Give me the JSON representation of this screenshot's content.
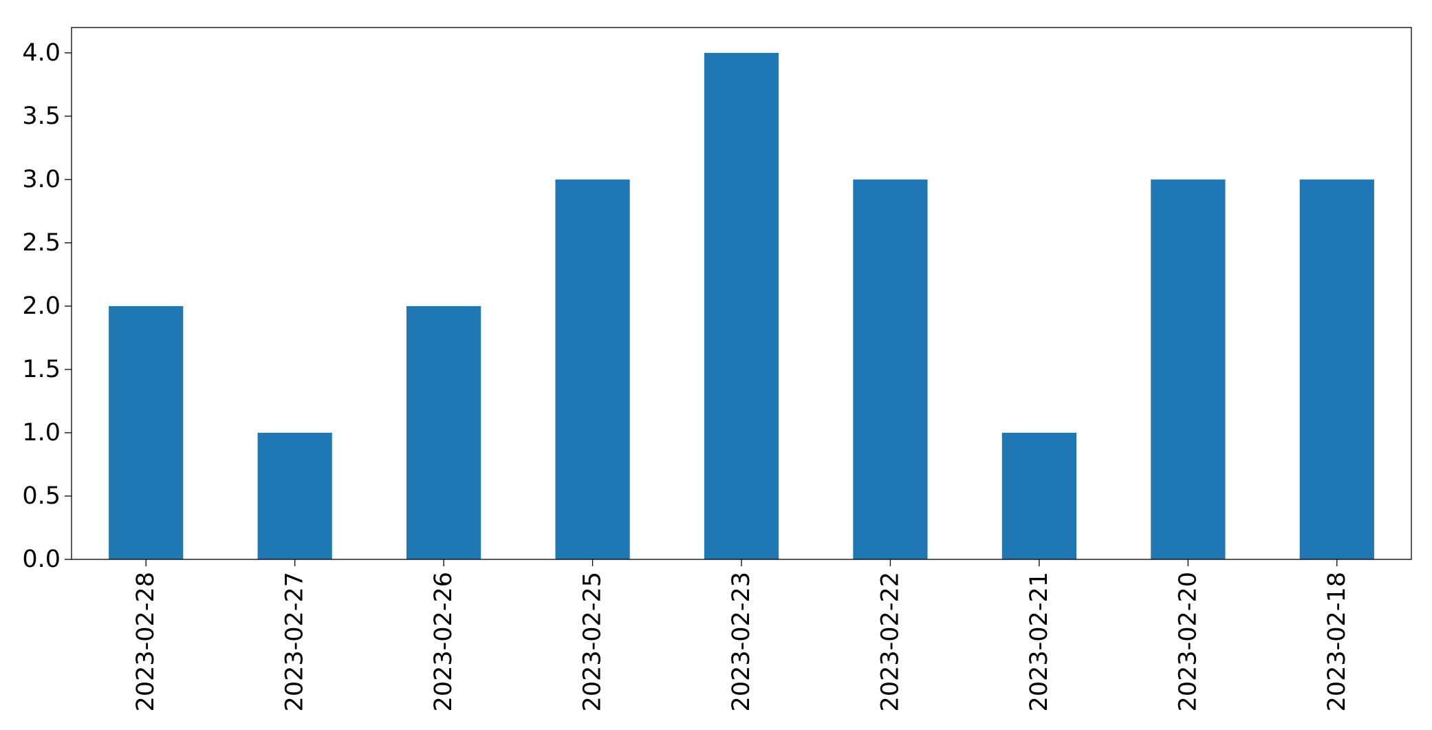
{
  "chart_data": {
    "type": "bar",
    "title": "",
    "xlabel": "",
    "ylabel": "",
    "categories": [
      "2023-02-28",
      "2023-02-27",
      "2023-02-26",
      "2023-02-25",
      "2023-02-23",
      "2023-02-22",
      "2023-02-21",
      "2023-02-20",
      "2023-02-18"
    ],
    "values": [
      2,
      1,
      2,
      3,
      4,
      3,
      1,
      3,
      3
    ],
    "ylim": [
      0,
      4.2
    ],
    "yticks": [
      "0.0",
      "0.5",
      "1.0",
      "1.5",
      "2.0",
      "2.5",
      "3.0",
      "3.5",
      "4.0"
    ],
    "grid": false,
    "legend": "none",
    "bar_color": "#1f77b4"
  }
}
